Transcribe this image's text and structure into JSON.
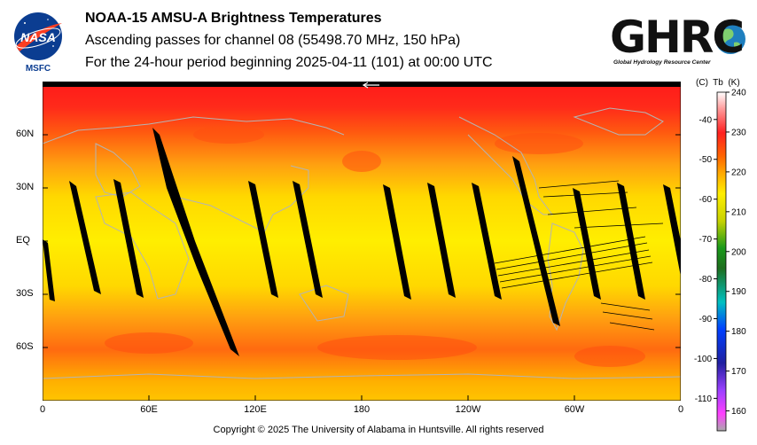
{
  "header": {
    "title": "NOAA-15 AMSU-A Brightness Temperatures",
    "subtitle": "Ascending passes for channel 08 (55498.70 MHz, 150 hPa)",
    "period": "For the 24-hour period beginning 2025-04-11 (101) at 00:00 UTC"
  },
  "logos": {
    "nasa_text": "NASA",
    "nasa_caption": "MSFC",
    "ghrc_text": "GHRC",
    "ghrc_caption": "Global Hydrology Resource Center"
  },
  "map": {
    "lat_labels": [
      "60N",
      "30N",
      "EQ",
      "30S",
      "60S"
    ],
    "lon_labels": [
      "0",
      "60E",
      "120E",
      "180",
      "120W",
      "60W",
      "0"
    ],
    "lat_values": [
      60,
      30,
      0,
      -30,
      -60
    ],
    "lon_values": [
      0,
      60,
      120,
      180,
      240,
      300,
      360
    ],
    "arrow_icon": "left-arrow-icon",
    "no_data_color": "#000000",
    "coastline_color": "#b4b4b4"
  },
  "colorbar": {
    "unit_c": "(C)",
    "unit_tb": "Tb",
    "unit_k": "(K)",
    "kelvin_ticks": [
      "240",
      "230",
      "220",
      "210",
      "200",
      "190",
      "180",
      "170",
      "160"
    ],
    "kelvin_values": [
      240,
      230,
      220,
      210,
      200,
      190,
      180,
      170,
      160
    ],
    "celsius_ticks": [
      "-40",
      "-50",
      "-60",
      "-70",
      "-80",
      "-90",
      "-100",
      "-110"
    ],
    "celsius_values": [
      -40,
      -50,
      -60,
      -70,
      -80,
      -90,
      -100,
      -110
    ],
    "range_k": [
      155,
      240
    ]
  },
  "footer": {
    "copyright": "Copyright © 2025 The University of Alabama in Huntsville.  All rights reserved"
  }
}
